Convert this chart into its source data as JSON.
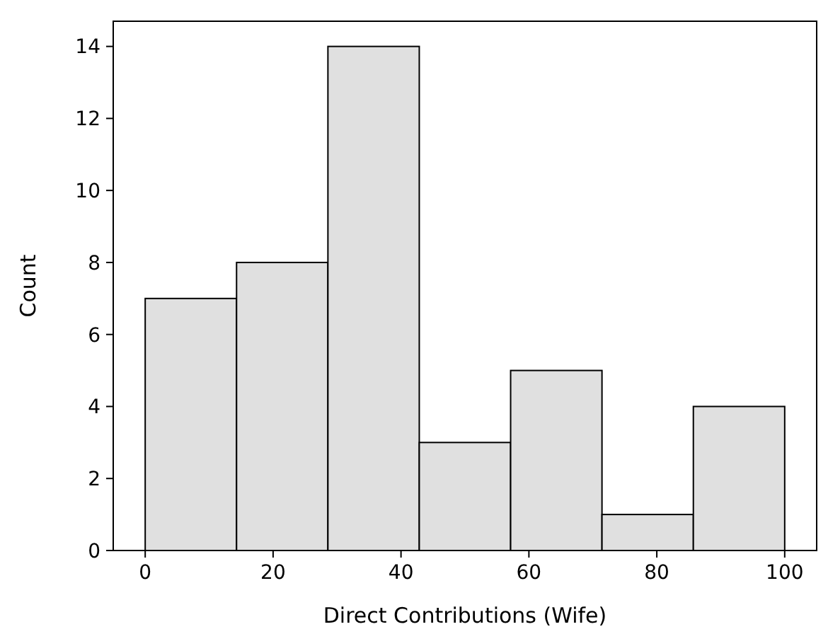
{
  "chart_data": {
    "type": "histogram",
    "xlabel": "Direct Contributions (Wife)",
    "ylabel": "Count",
    "bins": [
      0,
      14.2857,
      28.5714,
      42.8571,
      57.1429,
      71.4286,
      85.7143,
      100
    ],
    "values": [
      7,
      8,
      14,
      3,
      5,
      1,
      4
    ],
    "color": "#e0e0e0",
    "xlim": [
      -5,
      105
    ],
    "xticks": [
      0,
      20,
      40,
      60,
      80,
      100
    ],
    "ylim": [
      0,
      14.7
    ],
    "yticks": [
      0,
      2,
      4,
      6,
      8,
      10,
      12,
      14
    ],
    "grid": false
  }
}
